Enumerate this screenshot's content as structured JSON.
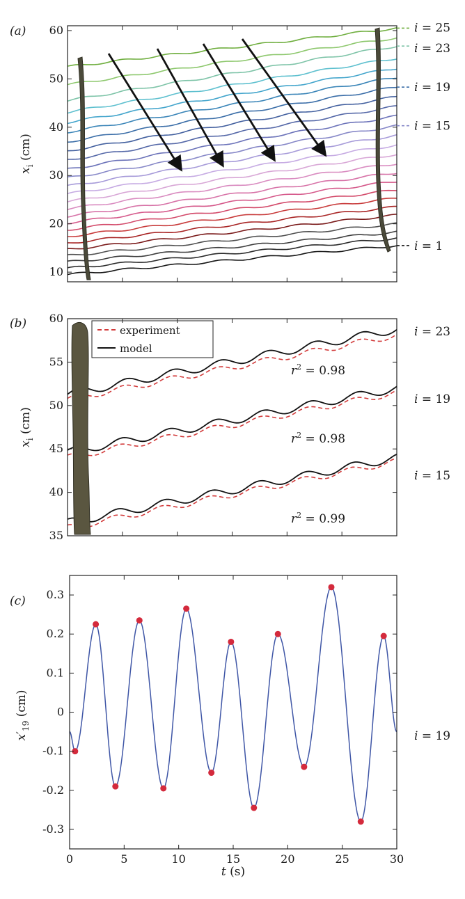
{
  "chart_data": [
    {
      "panel": "(a)",
      "type": "line",
      "ylabel": "x_i (cm)",
      "ylim": [
        8,
        61
      ],
      "xlim": [
        0,
        30
      ],
      "yticks": [
        10,
        20,
        30,
        40,
        50,
        60
      ],
      "grid": false,
      "series_count": 25,
      "series_start": [
        9.5,
        10.8,
        12.1,
        13.4,
        14.7,
        16.0,
        17.4,
        18.8,
        20.2,
        21.6,
        23.1,
        24.6,
        26.2,
        27.8,
        29.5,
        31.3,
        33.2,
        35.1,
        37.0,
        39.0,
        41.0,
        43.1,
        45.5,
        48.8,
        52.5
      ],
      "series_end": [
        15.5,
        17.0,
        18.3,
        20.0,
        21.8,
        23.5,
        25.3,
        27.0,
        28.8,
        30.6,
        32.5,
        34.4,
        36.3,
        38.3,
        40.3,
        42.3,
        44.3,
        46.3,
        48.3,
        50.3,
        52.2,
        54.3,
        56.8,
        58.5,
        60.5
      ],
      "series_colors": [
        "#141414",
        "#2a2a2a",
        "#3d3d3d",
        "#4f4f4f",
        "#7a1a1a",
        "#a82424",
        "#c83a3a",
        "#d34a6a",
        "#d5588a",
        "#d772a7",
        "#d98bc0",
        "#d8a6d6",
        "#c6abe3",
        "#a69ad9",
        "#8788c8",
        "#6b72b9",
        "#5568a8",
        "#43609f",
        "#3b6ea8",
        "#3a85b8",
        "#43a5cc",
        "#5ec0cf",
        "#7ec4a8",
        "#8ec86e",
        "#6fae3e"
      ],
      "series_labels": [
        "i = 1",
        "i = 15",
        "i = 19",
        "i = 23",
        "i = 25"
      ],
      "series_label_index": [
        1,
        15,
        19,
        23,
        25
      ]
    },
    {
      "panel": "(b)",
      "type": "line",
      "ylabel": "x_i (cm)",
      "ylim": [
        35,
        60
      ],
      "xlim": [
        0,
        30
      ],
      "yticks": [
        35,
        40,
        45,
        50,
        55,
        60
      ],
      "grid": false,
      "legend": [
        "experiment",
        "model"
      ],
      "legend_position": "top-left",
      "series": [
        {
          "label": "i = 23",
          "r2": "r² = 0.98",
          "x": [
            0,
            30
          ],
          "y": [
            51.3,
            58.8
          ],
          "experiment_end": 58.1
        },
        {
          "label": "i = 19",
          "r2": "r² = 0.98",
          "x": [
            0,
            30
          ],
          "y": [
            44.6,
            52.0
          ],
          "experiment_end": 51.5
        },
        {
          "label": "i = 15",
          "r2": "r² = 0.99",
          "x": [
            0,
            30
          ],
          "y": [
            36.5,
            44.0
          ],
          "experiment_end": 43.6
        }
      ]
    },
    {
      "panel": "(c)",
      "type": "line",
      "xlabel": "t (s)",
      "ylabel": "x'_19 (cm)",
      "xlim": [
        0,
        30
      ],
      "ylim": [
        -0.35,
        0.35
      ],
      "xticks": [
        0,
        5,
        10,
        15,
        20,
        25,
        30
      ],
      "yticks": [
        0.3,
        0.2,
        0.1,
        0,
        -0.1,
        -0.2,
        -0.3
      ],
      "ytick_labels": [
        "0.3",
        "0.2",
        "0.1",
        "0",
        "-0.1",
        "-0.2",
        "-0.3"
      ],
      "series_label": "i = 19",
      "line_color": "#3f56a6",
      "marker_color": "#d42a3c",
      "extrema": [
        {
          "t": 0.5,
          "y": -0.1
        },
        {
          "t": 2.4,
          "y": 0.225
        },
        {
          "t": 4.2,
          "y": -0.19
        },
        {
          "t": 6.4,
          "y": 0.235
        },
        {
          "t": 8.6,
          "y": -0.195
        },
        {
          "t": 10.7,
          "y": 0.265
        },
        {
          "t": 13.0,
          "y": -0.155
        },
        {
          "t": 14.8,
          "y": 0.18
        },
        {
          "t": 16.9,
          "y": -0.245
        },
        {
          "t": 19.1,
          "y": 0.2
        },
        {
          "t": 21.5,
          "y": -0.14
        },
        {
          "t": 24.0,
          "y": 0.32
        },
        {
          "t": 26.7,
          "y": -0.28
        },
        {
          "t": 28.8,
          "y": 0.195
        }
      ],
      "end_points": [
        {
          "t": 0,
          "y": -0.05
        },
        {
          "t": 30,
          "y": -0.05
        }
      ]
    }
  ]
}
